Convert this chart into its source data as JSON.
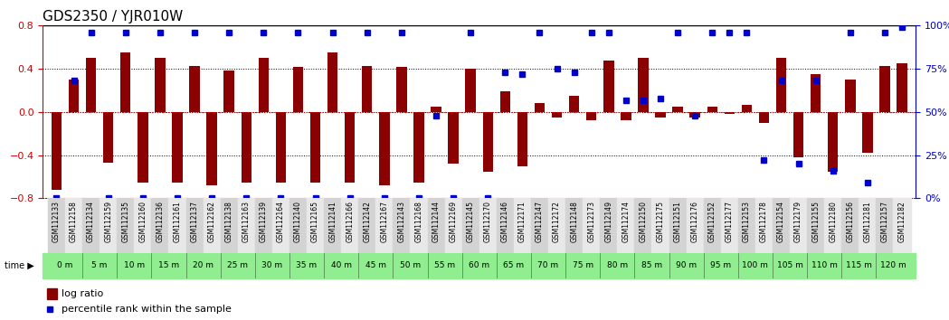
{
  "title": "GDS2350 / YJR010W",
  "gsm_labels": [
    "GSM112133",
    "GSM112158",
    "GSM112134",
    "GSM112159",
    "GSM112135",
    "GSM112160",
    "GSM112136",
    "GSM112161",
    "GSM112137",
    "GSM112162",
    "GSM112138",
    "GSM112163",
    "GSM112139",
    "GSM112164",
    "GSM112140",
    "GSM112165",
    "GSM112141",
    "GSM112166",
    "GSM112142",
    "GSM112167",
    "GSM112143",
    "GSM112168",
    "GSM112144",
    "GSM112169",
    "GSM112145",
    "GSM112170",
    "GSM112146",
    "GSM112171",
    "GSM112147",
    "GSM112172",
    "GSM112148",
    "GSM112173",
    "GSM112149",
    "GSM112174",
    "GSM112150",
    "GSM112175",
    "GSM112151",
    "GSM112176",
    "GSM112152",
    "GSM112177",
    "GSM112153",
    "GSM112178",
    "GSM112154",
    "GSM112179",
    "GSM112155",
    "GSM112180",
    "GSM112156",
    "GSM112181",
    "GSM112157",
    "GSM112182"
  ],
  "time_labels": [
    "0 m",
    "5 m",
    "10 m",
    "15 m",
    "20 m",
    "25 m",
    "30 m",
    "35 m",
    "40 m",
    "45 m",
    "50 m",
    "55 m",
    "60 m",
    "65 m",
    "70 m",
    "75 m",
    "80 m",
    "85 m",
    "90 m",
    "95 m",
    "100 m",
    "105 m",
    "110 m",
    "115 m",
    "120 m"
  ],
  "log_ratio": [
    -0.72,
    0.3,
    0.5,
    -0.47,
    0.55,
    -0.65,
    0.5,
    -0.65,
    0.43,
    -0.68,
    0.38,
    -0.65,
    0.5,
    -0.65,
    0.42,
    -0.65,
    0.55,
    -0.65,
    0.43,
    -0.68,
    0.42,
    -0.65,
    0.05,
    -0.48,
    0.4,
    -0.55,
    0.19,
    -0.5,
    0.08,
    -0.05,
    0.15,
    -0.08,
    0.48,
    -0.08,
    0.5,
    -0.05,
    0.05,
    -0.05,
    0.05,
    -0.02,
    0.07,
    -0.1,
    0.5,
    -0.42,
    0.35,
    -0.55,
    0.3,
    -0.38,
    0.43,
    0.45
  ],
  "percentile": [
    0,
    68,
    96,
    0,
    96,
    0,
    96,
    0,
    96,
    0,
    96,
    0,
    96,
    0,
    96,
    0,
    96,
    0,
    96,
    0,
    96,
    0,
    48,
    0,
    96,
    0,
    73,
    72,
    96,
    75,
    73,
    96,
    96,
    57,
    57,
    58,
    96,
    48,
    96,
    96,
    96,
    22,
    68,
    20,
    68,
    16,
    96,
    9,
    96,
    99
  ],
  "ylim_left": [
    -0.8,
    0.8
  ],
  "ylim_right": [
    0,
    100
  ],
  "yticks_left": [
    -0.8,
    -0.4,
    0,
    0.4,
    0.8
  ],
  "yticks_right": [
    0,
    25,
    50,
    75,
    100
  ],
  "bar_color": "#8B0000",
  "dot_color": "#0000CD",
  "bg_color": "#ffffff",
  "title_fontsize": 11,
  "axis_color_left": "#CC0000",
  "axis_color_right": "#0000CC",
  "green_bg": "#90EE90",
  "gray_bg": "#D3D3D3"
}
